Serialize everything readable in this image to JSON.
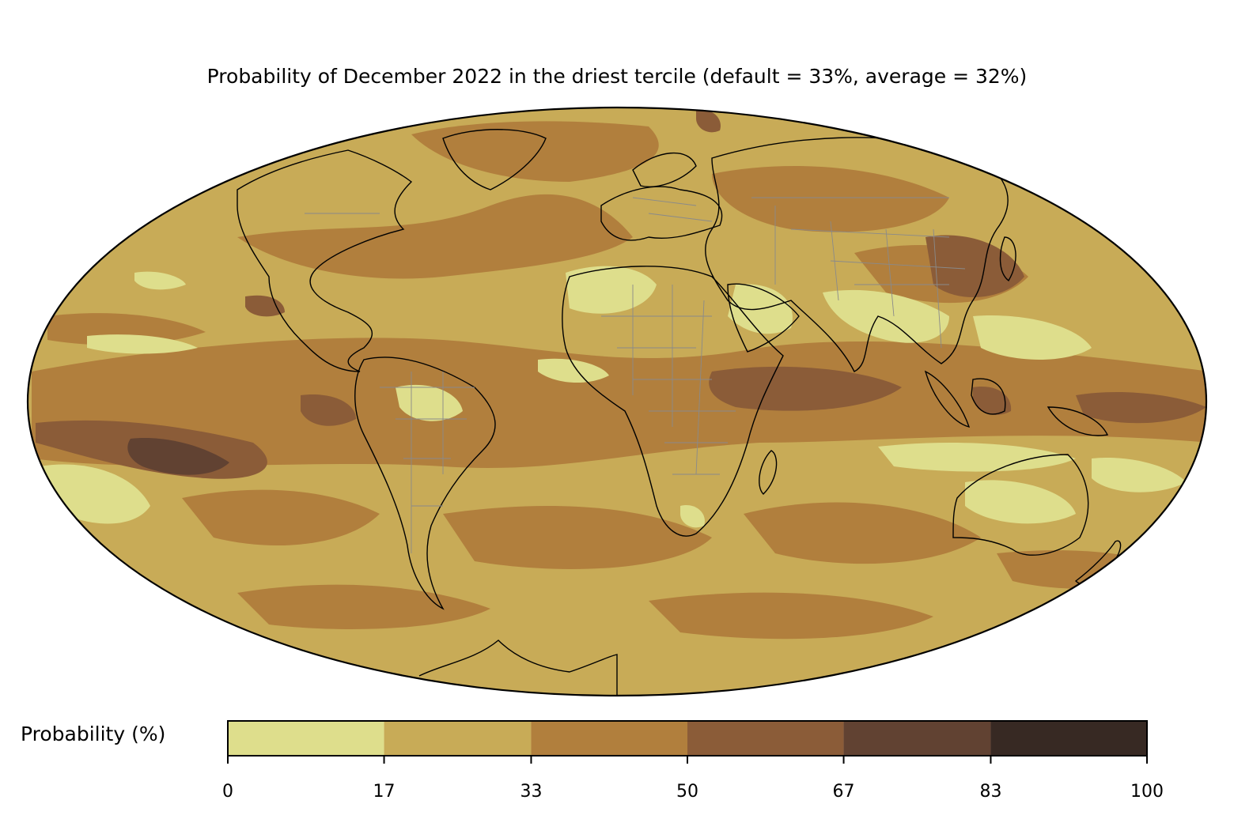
{
  "title": "Probability of December 2022 in the driest tercile (default = 33%, average = 32%)",
  "colorbar": {
    "label": "Probability (%)",
    "bins": [
      {
        "from": 0,
        "to": 17,
        "color": "#dede8c"
      },
      {
        "from": 17,
        "to": 33,
        "color": "#c8ab57"
      },
      {
        "from": 33,
        "to": 50,
        "color": "#b17f3d"
      },
      {
        "from": 50,
        "to": 67,
        "color": "#8b5c38"
      },
      {
        "from": 67,
        "to": 83,
        "color": "#614232"
      },
      {
        "from": 83,
        "to": 100,
        "color": "#372923"
      }
    ],
    "ticks": [
      "0",
      "17",
      "33",
      "50",
      "67",
      "83",
      "100"
    ]
  },
  "map": {
    "projection": "Mollweide",
    "coastline_color": "#000000",
    "border_color": "#8a8a8a"
  }
}
